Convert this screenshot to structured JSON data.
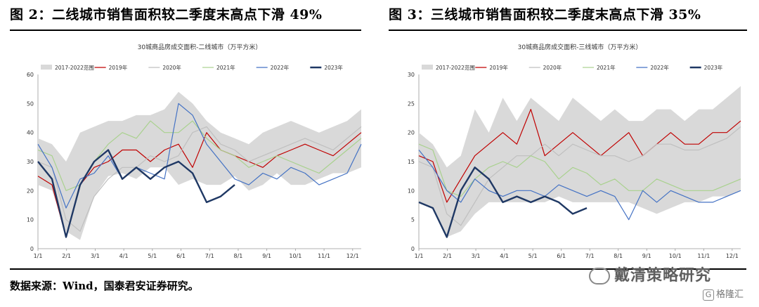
{
  "figures": {
    "left_title": "图 2：二线城市销售面积较二季度末高点下滑 49%",
    "right_title": "图 3：三线城市销售面积较二季度末高点下滑 35%"
  },
  "source_note": "数据来源：Wind，国泰君安证券研究。",
  "watermark": "戴清策略研究",
  "badge": "格隆汇",
  "colors": {
    "range": "#d9d9d9",
    "y2019": "#c00000",
    "y2020": "#bfbfbf",
    "y2021": "#a9d18e",
    "y2022": "#4472c4",
    "y2023": "#1f3864"
  },
  "chart_data": [
    {
      "type": "line",
      "title": "30城商品房成交面积-二线城市（万平方米）",
      "x_ticks": [
        "1/1",
        "2/1",
        "3/1",
        "4/1",
        "5/1",
        "6/1",
        "7/1",
        "8/1",
        "9/1",
        "10/1",
        "11/1",
        "12/1"
      ],
      "ylim": [
        0,
        60
      ],
      "y_ticks": [
        0,
        10,
        20,
        30,
        40,
        50,
        60
      ],
      "legend": [
        "2017-2022范围",
        "2019年",
        "2020年",
        "2021年",
        "2022年",
        "2023年"
      ],
      "legend_position": "top",
      "grid": false,
      "series": [
        {
          "name": "2017-2022范围",
          "kind": "band",
          "low": [
            22,
            20,
            6,
            3,
            18,
            25,
            26,
            24,
            28,
            28,
            22,
            24,
            22,
            22,
            25,
            20,
            22,
            26,
            22,
            22,
            24,
            26,
            26,
            28
          ],
          "high": [
            38,
            36,
            30,
            40,
            42,
            44,
            44,
            46,
            46,
            48,
            54,
            50,
            44,
            40,
            38,
            36,
            40,
            42,
            44,
            42,
            40,
            42,
            44,
            48
          ]
        },
        {
          "name": "2019年",
          "values": [
            25,
            22,
            4,
            22,
            28,
            30,
            34,
            34,
            30,
            34,
            36,
            28,
            40,
            34,
            32,
            30,
            28,
            32,
            34,
            36,
            34,
            32,
            36,
            40
          ]
        },
        {
          "name": "2020年",
          "values": [
            30,
            28,
            10,
            6,
            18,
            24,
            28,
            28,
            32,
            30,
            32,
            40,
            42,
            36,
            34,
            30,
            32,
            34,
            36,
            38,
            36,
            34,
            38,
            42
          ]
        },
        {
          "name": "2021年",
          "values": [
            34,
            32,
            20,
            22,
            30,
            36,
            40,
            38,
            44,
            40,
            40,
            44,
            38,
            34,
            32,
            28,
            30,
            32,
            30,
            28,
            26,
            30,
            34,
            38
          ]
        },
        {
          "name": "2022年",
          "values": [
            36,
            28,
            14,
            24,
            26,
            32,
            24,
            28,
            26,
            24,
            50,
            46,
            36,
            30,
            24,
            22,
            26,
            24,
            28,
            26,
            22,
            24,
            26,
            36
          ]
        },
        {
          "name": "2023年",
          "values": [
            30,
            24,
            4,
            22,
            30,
            34,
            24,
            28,
            24,
            28,
            30,
            26,
            16,
            18,
            22,
            null,
            null,
            null,
            null,
            null,
            null,
            null,
            null,
            null
          ]
        }
      ]
    },
    {
      "type": "line",
      "title": "30城商品房成交面积-三线城市（万平方米）",
      "x_ticks": [
        "1/1",
        "2/1",
        "3/1",
        "4/1",
        "5/1",
        "6/1",
        "7/1",
        "8/1",
        "9/1",
        "10/1",
        "11/1",
        "12/1"
      ],
      "ylim": [
        0,
        30
      ],
      "y_ticks": [
        0,
        5,
        10,
        15,
        20,
        25,
        30
      ],
      "legend": [
        "2017-2022范围",
        "2019年",
        "2020年",
        "2021年",
        "2022年",
        "2023年"
      ],
      "legend_position": "top",
      "grid": false,
      "series": [
        {
          "name": "2017-2022范围",
          "kind": "band",
          "low": [
            8,
            7,
            2,
            3,
            6,
            8,
            8,
            8,
            8,
            8,
            9,
            8,
            8,
            8,
            8,
            8,
            7,
            6,
            7,
            8,
            8,
            9,
            9,
            10
          ],
          "high": [
            20,
            18,
            14,
            16,
            24,
            20,
            26,
            22,
            26,
            24,
            22,
            26,
            24,
            22,
            24,
            22,
            22,
            24,
            24,
            22,
            24,
            24,
            26,
            28
          ]
        },
        {
          "name": "2019年",
          "values": [
            16,
            15,
            8,
            12,
            16,
            18,
            20,
            18,
            24,
            16,
            18,
            20,
            18,
            16,
            18,
            20,
            16,
            18,
            20,
            18,
            18,
            20,
            20,
            22
          ]
        },
        {
          "name": "2020年",
          "values": [
            15,
            14,
            6,
            4,
            8,
            12,
            14,
            16,
            16,
            18,
            16,
            18,
            17,
            16,
            16,
            15,
            16,
            18,
            18,
            17,
            17,
            18,
            19,
            21
          ]
        },
        {
          "name": "2021年",
          "values": [
            18,
            17,
            10,
            9,
            12,
            14,
            15,
            14,
            16,
            15,
            12,
            14,
            13,
            11,
            12,
            10,
            10,
            12,
            11,
            10,
            10,
            10,
            11,
            12
          ]
        },
        {
          "name": "2022年",
          "values": [
            17,
            14,
            10,
            8,
            12,
            10,
            9,
            10,
            10,
            9,
            11,
            10,
            9,
            10,
            9,
            5,
            10,
            8,
            10,
            9,
            8,
            8,
            9,
            10
          ]
        },
        {
          "name": "2023年",
          "values": [
            8,
            7,
            2,
            10,
            14,
            12,
            8,
            9,
            8,
            9,
            8,
            6,
            7,
            null,
            null,
            null,
            null,
            null,
            null,
            null,
            null,
            null,
            null,
            null
          ]
        }
      ]
    }
  ]
}
